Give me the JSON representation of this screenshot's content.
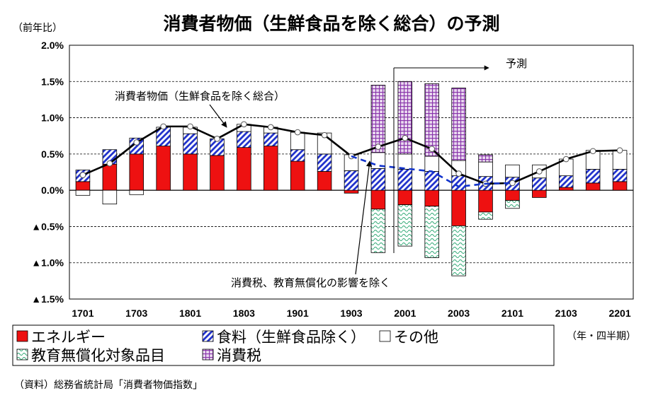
{
  "chart_data": {
    "type": "bar",
    "title": "消費者物価（生鮮食品を除く総合）の予測",
    "ylabel": "（前年比）",
    "xlabel": "（年・四半期）",
    "ylim": [
      -1.5,
      2.0
    ],
    "y_ticks": [
      2.0,
      1.5,
      1.0,
      0.5,
      0.0,
      -0.5,
      -1.0,
      -1.5
    ],
    "y_tick_labels": [
      "2.0%",
      "1.5%",
      "1.0%",
      "0.5%",
      "0.0%",
      "▲0.5%",
      "▲1.0%",
      "▲1.5%"
    ],
    "x_tick_labels": [
      "1701",
      "1703",
      "1801",
      "1803",
      "1901",
      "1903",
      "2001",
      "2003",
      "2101",
      "2103",
      "2201"
    ],
    "categories": [
      "1701",
      "1702",
      "1703",
      "1704",
      "1801",
      "1802",
      "1803",
      "1804",
      "1901",
      "1902",
      "1903",
      "1904",
      "2001",
      "2002",
      "2003",
      "2004",
      "2101",
      "2102",
      "2103",
      "2104",
      "2201"
    ],
    "grid": true,
    "legend_position": "bottom-left",
    "series": [
      {
        "name": "エネルギー",
        "color": "#ee1111",
        "pattern": "solid",
        "values": [
          0.12,
          0.36,
          0.5,
          0.61,
          0.5,
          0.48,
          0.59,
          0.61,
          0.4,
          0.26,
          -0.04,
          -0.26,
          -0.2,
          -0.22,
          -0.49,
          -0.3,
          -0.14,
          -0.1,
          0.04,
          0.1,
          0.12
        ]
      },
      {
        "name": "食料（生鮮食品除く）",
        "color": "#2233cc",
        "pattern": "diagonal",
        "values": [
          0.16,
          0.2,
          0.22,
          0.26,
          0.28,
          0.23,
          0.22,
          0.18,
          0.16,
          0.24,
          0.27,
          0.3,
          0.29,
          0.26,
          0.2,
          0.19,
          0.18,
          0.17,
          0.16,
          0.19,
          0.17
        ]
      },
      {
        "name": "その他",
        "color": "#ffffff",
        "pattern": "blank",
        "values": [
          -0.07,
          -0.19,
          -0.06,
          0.0,
          0.09,
          0.0,
          0.1,
          0.08,
          0.24,
          0.29,
          0.22,
          0.22,
          0.21,
          0.21,
          0.21,
          0.2,
          0.17,
          0.18,
          0.23,
          0.26,
          0.26
        ]
      },
      {
        "name": "教育無償化対象品目",
        "color": "#33aa77",
        "pattern": "wavy",
        "values": [
          0,
          0,
          0,
          0,
          0,
          0,
          0,
          0,
          0,
          0,
          0,
          -0.6,
          -0.57,
          -0.71,
          -0.69,
          -0.1,
          -0.11,
          0,
          0,
          0,
          0
        ]
      },
      {
        "name": "消費税",
        "color": "#8833aa",
        "pattern": "grid",
        "values": [
          0,
          0,
          0,
          0,
          0,
          0,
          0,
          0,
          0,
          0,
          0,
          0.93,
          1.0,
          1.0,
          1.0,
          0.1,
          0,
          0,
          0,
          0,
          0
        ]
      }
    ],
    "line_series": [
      {
        "name": "消費者物価（生鮮食品を除く総合）",
        "color": "#000000",
        "values": [
          0.21,
          0.37,
          0.66,
          0.88,
          0.88,
          0.71,
          0.91,
          0.87,
          0.8,
          0.76,
          0.47,
          0.6,
          0.72,
          0.57,
          0.23,
          0.09,
          0.1,
          0.26,
          0.43,
          0.54,
          0.55
        ]
      },
      {
        "name": "消費税、教育無償化の影響を除く",
        "color": "#1133cc",
        "dashed": true,
        "index_range": [
          10,
          16
        ],
        "values": [
          0.47,
          0.34,
          0.3,
          0.26,
          0.05,
          0.09,
          0.1
        ]
      }
    ],
    "annotations": [
      {
        "text": "消費者物価（生鮮食品を除く総合）"
      },
      {
        "text": "予測"
      },
      {
        "text": "消費税、教育無償化の影響を除く"
      }
    ]
  },
  "source": "（資料）総務省統計局「消費者物価指数」"
}
